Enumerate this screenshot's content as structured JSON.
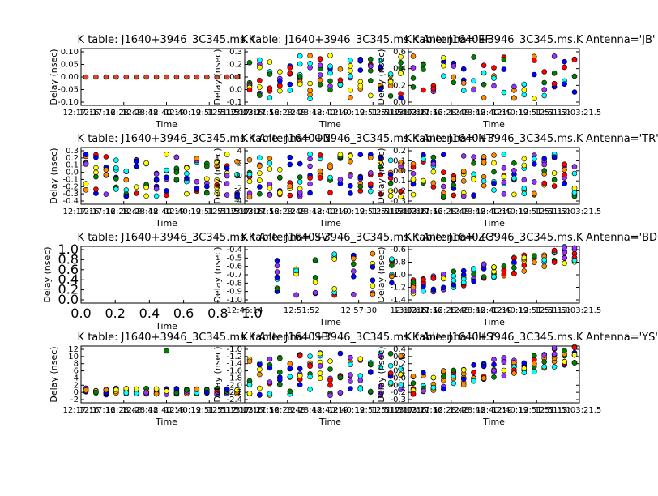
{
  "figure": {
    "background": "#ffffff",
    "marker_colors": [
      "#0000ff",
      "#ff0000",
      "#ffff00",
      "#00ffff",
      "#ff8c00",
      "#9933ff",
      "#008000"
    ],
    "time_ticks": [
      "12:17:16",
      "12:28:48",
      "12:40:19",
      "12:51:51",
      "13:03:21.5"
    ],
    "time_ticks_compressed": [
      "12:46:14",
      "12:51:52",
      "12:57:30",
      "13:03:21.5"
    ],
    "time_ticks_overlap": [
      "12:17:16",
      "12:28:48",
      "12:40:19",
      "12:51:51",
      "13:03:21.5",
      "12:17:16",
      "12:28:48",
      "12:40:19",
      "12:51:51",
      "13:03:21.5"
    ]
  },
  "chart_data": [
    {
      "type": "scatter",
      "title": "K table: J1640+3946_3C345.ms.K",
      "antenna_title": "",
      "xlabel": "Time",
      "ylabel": "Delay (nsec)",
      "ylim": [
        -0.11,
        0.11
      ],
      "yticks": [
        "0.10",
        "0.05",
        "0.00",
        "-0.05",
        "-0.10"
      ],
      "xticks_key": "overlap",
      "points": "flat-zero"
    },
    {
      "type": "scatter",
      "title": "K table: J1640+3946_3C345.ms.K",
      "antenna_title": "Antenna='EF'",
      "xlabel": "Time",
      "ylabel": "Delay (nsec)",
      "ylim": [
        -0.15,
        0.35
      ],
      "yticks": [
        "0.3",
        "0.2",
        "0.1",
        "0.0",
        "-0.1"
      ],
      "xticks_key": "overlap",
      "points": "scatter"
    },
    {
      "type": "scatter",
      "title": "K table: J1640+3946_3C345.ms.K",
      "antenna_title": "Antenna='JB'",
      "xlabel": "Time",
      "ylabel": "Delay (nsec)",
      "ylim": [
        -0.1,
        0.75
      ],
      "yticks": [
        "0.6",
        "0.4",
        "0.2",
        "0.0"
      ],
      "xticks_key": "overlap",
      "points": "scatter-sparse"
    },
    {
      "type": "scatter",
      "title": "K table: J1640+3946_3C345.ms.K",
      "antenna_title": "Antenna='ON'",
      "xlabel": "Time",
      "ylabel": "Delay (nsec)",
      "ylim": [
        -0.45,
        0.32
      ],
      "yticks": [
        "0.3",
        "0.2",
        "0.1",
        "0.0",
        "-0.1",
        "-0.2",
        "-0.3",
        "-0.4"
      ],
      "xticks_key": "overlap",
      "points": "scatter"
    },
    {
      "type": "scatter",
      "title": "K table: J1640+3946_3C345.ms.K",
      "antenna_title": "Antenna='NT'",
      "xlabel": "Time",
      "ylabel": "Delay (nsec)",
      "ylim": [
        -6,
        6
      ],
      "yticks": [
        "4",
        "2",
        "0",
        "-2",
        "-4"
      ],
      "xticks_key": "overlap",
      "points": "scatter-wide"
    },
    {
      "type": "scatter",
      "title": "K table: J1640+3946_3C345.ms.K",
      "antenna_title": "Antenna='TR'",
      "xlabel": "Time",
      "ylabel": "Delay (nsec)",
      "ylim": [
        -0.38,
        0.22
      ],
      "yticks": [
        "0.2",
        "0.1",
        "0.0",
        "-0.1",
        "-0.2",
        "-0.3"
      ],
      "xticks_key": "overlap",
      "points": "scatter"
    },
    {
      "type": "scatter",
      "title": "K table: J1640+3946_3C345.ms.K",
      "antenna_title": "Antenna='SV'",
      "xlabel": "Time",
      "ylabel": "Delay (nsec)",
      "ylim": [
        0,
        1
      ],
      "yticks": [
        "1.0",
        "0.8",
        "0.6",
        "0.4",
        "0.2",
        "0.0"
      ],
      "xticks": [
        "0.0",
        "0.2",
        "0.4",
        "0.6",
        "0.8",
        "1.0"
      ],
      "points": "empty"
    },
    {
      "type": "scatter",
      "title": "K table: J1640+3946_3C345.ms.K",
      "antenna_title": "Antenna='ZC'",
      "xlabel": "Time",
      "ylabel": "Delay (nsec)",
      "ylim": [
        -1.05,
        -0.38
      ],
      "yticks": [
        "-0.4",
        "-0.5",
        "-0.6",
        "-0.7",
        "-0.8",
        "-0.9",
        "-1.0"
      ],
      "xticks_key": "compressed",
      "points": "scatter-late"
    },
    {
      "type": "scatter",
      "title": "K table: J1640+3946_3C345.ms.K",
      "antenna_title": "Antenna='BD'",
      "xlabel": "Time",
      "ylabel": "Delay (nsec)",
      "ylim": [
        -1.5,
        -0.55
      ],
      "yticks": [
        "-0.6",
        "-0.8",
        "-1.0",
        "-1.2",
        "-1.4"
      ],
      "xticks_key": "overlap",
      "points": "scatter-trend"
    },
    {
      "type": "scatter",
      "title": "K table: J1640+3946_3C345.ms.K",
      "antenna_title": "Antenna='SB'",
      "xlabel": "Time",
      "ylabel": "Delay (nsec)",
      "ylim": [
        -3,
        12
      ],
      "yticks": [
        "12",
        "10",
        "8",
        "6",
        "4",
        "2",
        "0",
        "-2"
      ],
      "xticks_key": "overlap",
      "points": "scatter-outlier"
    },
    {
      "type": "scatter",
      "title": "K table: J1640+3946_3C345.ms.K",
      "antenna_title": "Antenna='HS'",
      "xlabel": "Time",
      "ylabel": "Delay (nsec)",
      "ylim": [
        -2.5,
        -0.95
      ],
      "yticks": [
        "-1.0",
        "-1.2",
        "-1.4",
        "-1.6",
        "-1.8",
        "-2.0",
        "-2.2",
        "-2.4"
      ],
      "xticks_key": "overlap",
      "points": "scatter"
    },
    {
      "type": "scatter",
      "title": "K table: J1640+3946_3C345.ms.K",
      "antenna_title": "Antenna='YS'",
      "xlabel": "Time",
      "ylabel": "Delay (nsec)",
      "ylim": [
        -0.35,
        0.5
      ],
      "yticks": [
        "0.4",
        "0.3",
        "0.2",
        "0.1",
        "0.0",
        "-0.1",
        "-0.2",
        "-0.3"
      ],
      "xticks_key": "overlap",
      "points": "scatter-trend-up"
    }
  ]
}
